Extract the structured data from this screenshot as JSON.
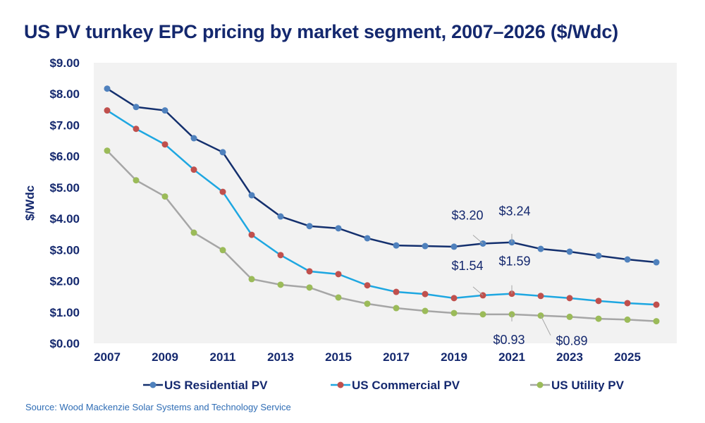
{
  "chart_data": {
    "type": "line",
    "title": "US PV turnkey EPC pricing by market segment, 2007–2026 ($/Wdc)",
    "ylabel": "$/Wdc",
    "xlabel": "",
    "ylim": [
      0,
      9
    ],
    "yticks": [
      "$0.00",
      "$1.00",
      "$2.00",
      "$3.00",
      "$4.00",
      "$5.00",
      "$6.00",
      "$7.00",
      "$8.00",
      "$9.00"
    ],
    "xticks": [
      "2007",
      "2009",
      "2011",
      "2013",
      "2015",
      "2017",
      "2019",
      "2021",
      "2023",
      "2025"
    ],
    "x": [
      2007,
      2008,
      2009,
      2010,
      2011,
      2012,
      2013,
      2014,
      2015,
      2016,
      2017,
      2018,
      2019,
      2020,
      2021,
      2022,
      2023,
      2024,
      2025,
      2026
    ],
    "grid": false,
    "legend": "bottom",
    "series": [
      {
        "name": "US Residential PV",
        "line_color": "#14306e",
        "marker_color": "#4f81bd",
        "values": [
          8.17,
          7.58,
          7.47,
          6.58,
          6.13,
          4.75,
          4.07,
          3.76,
          3.69,
          3.37,
          3.14,
          3.12,
          3.1,
          3.2,
          3.24,
          3.03,
          2.94,
          2.81,
          2.69,
          2.6
        ]
      },
      {
        "name": "US Commercial PV",
        "line_color": "#1ea7e1",
        "marker_color": "#c0504d",
        "values": [
          7.47,
          6.88,
          6.38,
          5.57,
          4.86,
          3.48,
          2.83,
          2.31,
          2.22,
          1.86,
          1.65,
          1.58,
          1.45,
          1.54,
          1.59,
          1.52,
          1.45,
          1.36,
          1.29,
          1.24
        ]
      },
      {
        "name": "US Utility PV",
        "line_color": "#a6a6a6",
        "marker_color": "#9bbb59",
        "values": [
          6.18,
          5.23,
          4.71,
          3.55,
          2.99,
          2.06,
          1.88,
          1.79,
          1.47,
          1.27,
          1.13,
          1.04,
          0.97,
          0.93,
          0.93,
          0.89,
          0.85,
          0.79,
          0.76,
          0.71
        ]
      }
    ],
    "annotations": [
      {
        "text": "$3.20",
        "series": 0,
        "x": 2020
      },
      {
        "text": "$3.24",
        "series": 0,
        "x": 2021
      },
      {
        "text": "$1.54",
        "series": 1,
        "x": 2020
      },
      {
        "text": "$1.59",
        "series": 1,
        "x": 2021
      },
      {
        "text": "$0.93",
        "series": 2,
        "x": 2021
      },
      {
        "text": "$0.89",
        "series": 2,
        "x": 2022
      }
    ],
    "plot_background": "#f2f2f2"
  },
  "source": "Source: Wood Mackenzie Solar Systems and Technology Service"
}
